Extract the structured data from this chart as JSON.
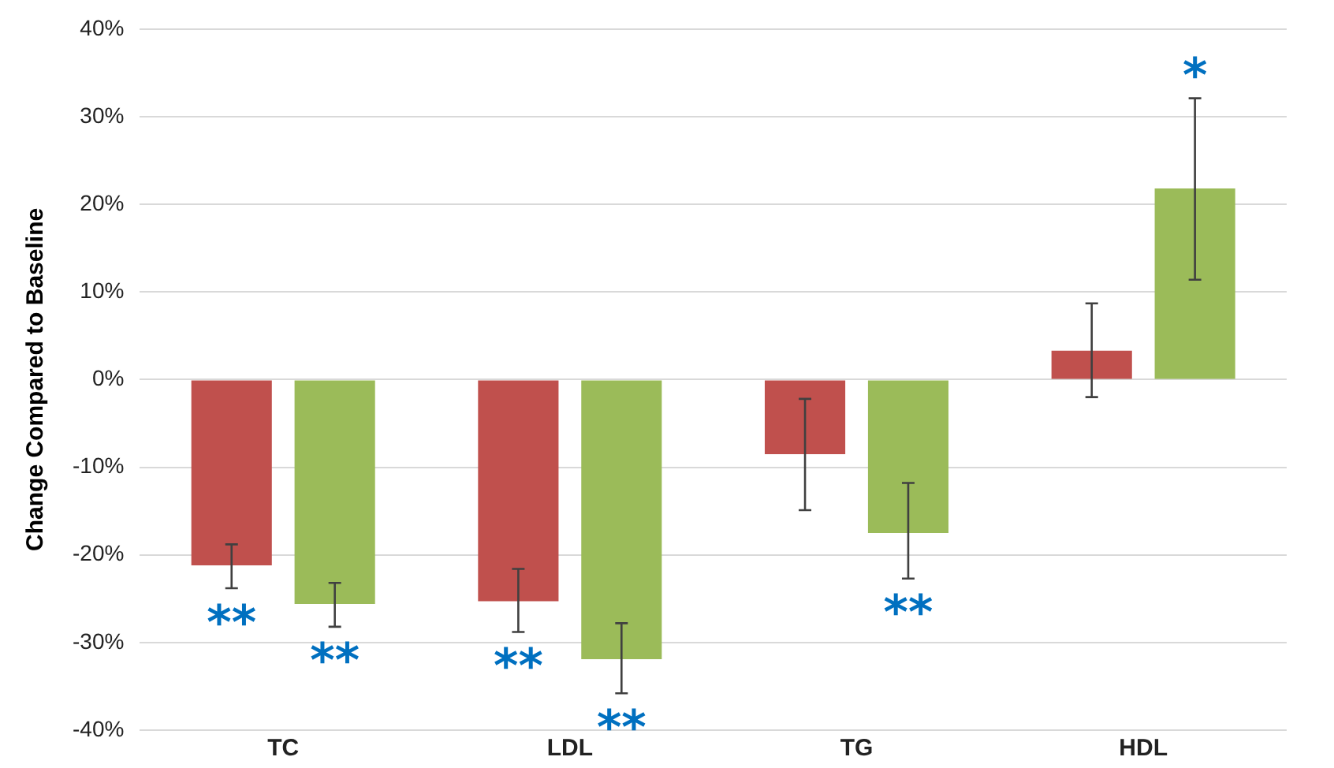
{
  "chart_data": {
    "type": "bar",
    "ylabel": "Change Compared to Baseline",
    "categories": [
      "TC",
      "LDL",
      "TG",
      "HDL"
    ],
    "series": [
      {
        "color": "#c0504d",
        "values": [
          -21.2,
          -25.3,
          -8.5,
          3.3
        ],
        "errors": [
          [
            -23.8,
            -18.8
          ],
          [
            -28.8,
            -21.6
          ],
          [
            -14.9,
            -2.2
          ],
          [
            -2,
            8.7
          ]
        ]
      },
      {
        "color": "#9bbb59",
        "values": [
          -25.6,
          -31.9,
          -17.5,
          21.8
        ],
        "errors": [
          [
            -28.2,
            -23.2
          ],
          [
            -35.8,
            -27.8
          ],
          [
            -22.7,
            -11.8
          ],
          [
            11.4,
            32.1
          ]
        ]
      }
    ],
    "ylim": [
      -40,
      40
    ],
    "yticks": [
      {
        "value": -40,
        "label": "-40%"
      },
      {
        "value": -30,
        "label": "-30%"
      },
      {
        "value": -20,
        "label": "-20%"
      },
      {
        "value": -10,
        "label": "-10%"
      },
      {
        "value": 0,
        "label": "0%"
      },
      {
        "value": 10,
        "label": "10%"
      },
      {
        "value": 20,
        "label": "20%"
      },
      {
        "value": 30,
        "label": "30%"
      },
      {
        "value": 40,
        "label": "40%"
      }
    ],
    "grid": "y",
    "annotations": [
      "**",
      "**",
      "**",
      "**",
      "**",
      "*"
    ]
  }
}
